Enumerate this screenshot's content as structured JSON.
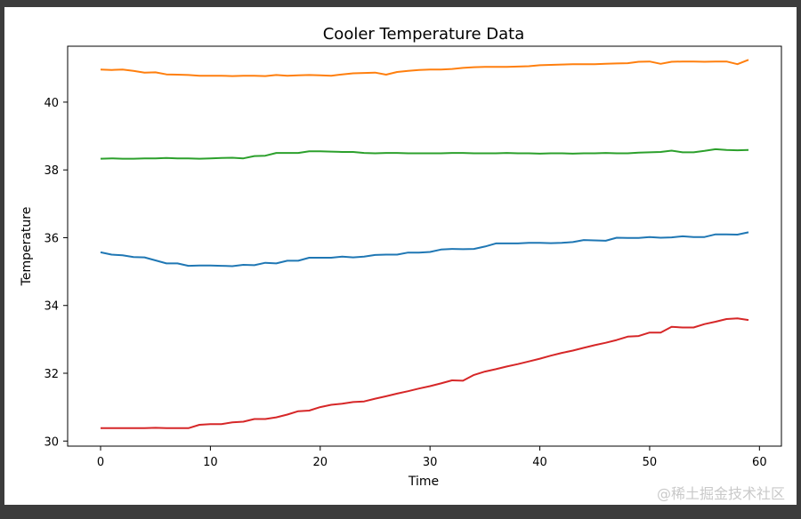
{
  "chart_data": {
    "type": "line",
    "title": "Cooler Temperature Data",
    "xlabel": "Time",
    "ylabel": "Temperature",
    "xlim": [
      -3,
      62
    ],
    "ylim": [
      29.85,
      41.65
    ],
    "xticks": [
      "0",
      "10",
      "20",
      "30",
      "40",
      "50",
      "60"
    ],
    "yticks": [
      "30",
      "32",
      "34",
      "36",
      "38",
      "40"
    ],
    "grid": false,
    "x": [
      0,
      1,
      2,
      3,
      4,
      5,
      6,
      7,
      8,
      9,
      10,
      11,
      12,
      13,
      14,
      15,
      16,
      17,
      18,
      19,
      20,
      21,
      22,
      23,
      24,
      25,
      26,
      27,
      28,
      29,
      30,
      31,
      32,
      33,
      34,
      35,
      36,
      37,
      38,
      39,
      40,
      41,
      42,
      43,
      44,
      45,
      46,
      47,
      48,
      49,
      50,
      51,
      52,
      53,
      54,
      55,
      56,
      57,
      58,
      59
    ],
    "series": [
      {
        "color": "#1f77b4",
        "values": [
          35.57,
          35.5,
          35.48,
          35.43,
          35.42,
          35.33,
          35.24,
          35.24,
          35.17,
          35.18,
          35.18,
          35.17,
          35.16,
          35.2,
          35.19,
          35.26,
          35.24,
          35.32,
          35.32,
          35.41,
          35.41,
          35.41,
          35.44,
          35.42,
          35.44,
          35.49,
          35.5,
          35.5,
          35.56,
          35.56,
          35.58,
          35.65,
          35.67,
          35.66,
          35.67,
          35.74,
          35.83,
          35.83,
          35.83,
          35.85,
          35.85,
          35.84,
          35.85,
          35.87,
          35.93,
          35.92,
          35.91,
          36.0,
          35.99,
          35.99,
          36.02,
          36.0,
          36.01,
          36.04,
          36.02,
          36.02,
          36.1,
          36.1,
          36.09,
          36.16
        ]
      },
      {
        "color": "#ff7f0e",
        "values": [
          40.96,
          40.95,
          40.96,
          40.92,
          40.87,
          40.88,
          40.82,
          40.81,
          40.8,
          40.78,
          40.78,
          40.78,
          40.77,
          40.78,
          40.78,
          40.77,
          40.8,
          40.78,
          40.79,
          40.8,
          40.79,
          40.78,
          40.82,
          40.85,
          40.86,
          40.87,
          40.81,
          40.89,
          40.92,
          40.95,
          40.96,
          40.96,
          40.98,
          41.01,
          41.03,
          41.04,
          41.04,
          41.04,
          41.05,
          41.06,
          41.09,
          41.1,
          41.11,
          41.12,
          41.12,
          41.12,
          41.13,
          41.14,
          41.15,
          41.19,
          41.2,
          41.13,
          41.19,
          41.2,
          41.2,
          41.19,
          41.2,
          41.2,
          41.12,
          41.25
        ]
      },
      {
        "color": "#2ca02c",
        "values": [
          38.33,
          38.34,
          38.33,
          38.33,
          38.34,
          38.34,
          38.35,
          38.34,
          38.34,
          38.33,
          38.34,
          38.35,
          38.36,
          38.34,
          38.41,
          38.42,
          38.5,
          38.5,
          38.5,
          38.55,
          38.55,
          38.54,
          38.53,
          38.53,
          38.5,
          38.49,
          38.5,
          38.5,
          38.49,
          38.49,
          38.49,
          38.49,
          38.5,
          38.5,
          38.49,
          38.49,
          38.49,
          38.5,
          38.49,
          38.49,
          38.48,
          38.49,
          38.49,
          38.48,
          38.49,
          38.49,
          38.5,
          38.49,
          38.49,
          38.51,
          38.52,
          38.53,
          38.57,
          38.52,
          38.52,
          38.56,
          38.61,
          38.59,
          38.58,
          38.59
        ]
      },
      {
        "color": "#d62728",
        "values": [
          30.38,
          30.38,
          30.38,
          30.38,
          30.38,
          30.39,
          30.38,
          30.38,
          30.38,
          30.48,
          30.5,
          30.5,
          30.55,
          30.57,
          30.65,
          30.65,
          30.7,
          30.78,
          30.88,
          30.9,
          31.0,
          31.07,
          31.1,
          31.15,
          31.17,
          31.25,
          31.32,
          31.4,
          31.47,
          31.55,
          31.62,
          31.7,
          31.79,
          31.78,
          31.95,
          32.05,
          32.12,
          32.2,
          32.27,
          32.35,
          32.43,
          32.52,
          32.6,
          32.67,
          32.75,
          32.83,
          32.9,
          32.98,
          33.08,
          33.1,
          33.2,
          33.2,
          33.37,
          33.35,
          33.35,
          33.45,
          33.52,
          33.6,
          33.62,
          33.57
        ]
      }
    ]
  },
  "watermark": "@稀土掘金技术社区"
}
